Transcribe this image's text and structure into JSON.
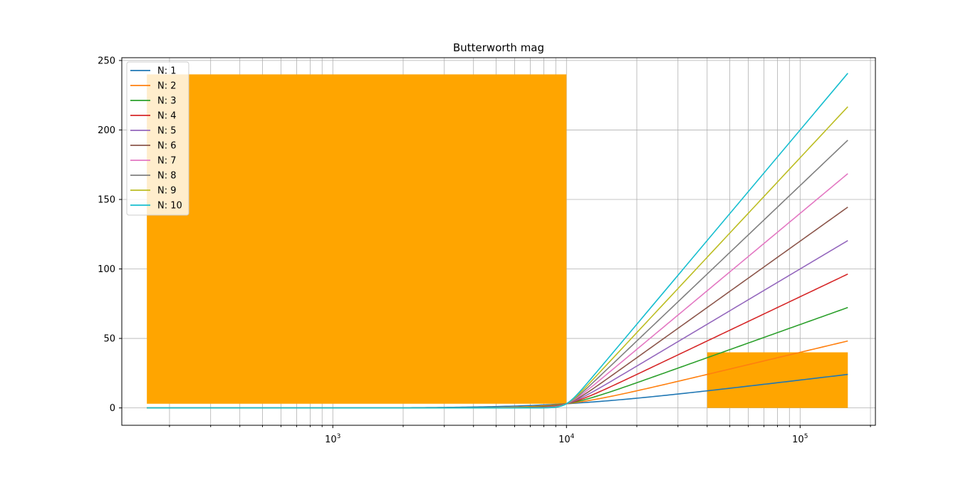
{
  "chart_data": {
    "type": "line",
    "title": "Butterworth mag",
    "xlabel": "",
    "ylabel": "",
    "xscale": "log",
    "xlim": [
      125,
      210000
    ],
    "ylim": [
      -12.5,
      252
    ],
    "xticks": [
      {
        "value": 1000,
        "base": "10",
        "exp": "3"
      },
      {
        "value": 10000,
        "base": "10",
        "exp": "4"
      },
      {
        "value": 100000,
        "base": "10",
        "exp": "5"
      }
    ],
    "yticks": [
      0,
      50,
      100,
      150,
      200,
      250
    ],
    "grid": true,
    "grid_minor_x": true,
    "legend_position": "top-left",
    "cutoff_frequency": 10000,
    "x_range": [
      160,
      160000
    ],
    "shaded_regions": [
      {
        "x0": 160,
        "x1": 10000,
        "y0": 3,
        "y1": 240,
        "color": "#ffa500"
      },
      {
        "x0": 40000,
        "x1": 160000,
        "y0": 0,
        "y1": 40,
        "color": "#ffa500"
      }
    ],
    "series": [
      {
        "name": "N: 1",
        "order": 1,
        "color": "#1f77b4"
      },
      {
        "name": "N: 2",
        "order": 2,
        "color": "#ff7f0e"
      },
      {
        "name": "N: 3",
        "order": 3,
        "color": "#2ca02c"
      },
      {
        "name": "N: 4",
        "order": 4,
        "color": "#d62728"
      },
      {
        "name": "N: 5",
        "order": 5,
        "color": "#9467bd"
      },
      {
        "name": "N: 6",
        "order": 6,
        "color": "#8c564b"
      },
      {
        "name": "N: 7",
        "order": 7,
        "color": "#e377c2"
      },
      {
        "name": "N: 8",
        "order": 8,
        "color": "#7f7f7f"
      },
      {
        "name": "N: 9",
        "order": 9,
        "color": "#bcbd22"
      },
      {
        "name": "N: 10",
        "order": 10,
        "color": "#17becf"
      }
    ]
  }
}
